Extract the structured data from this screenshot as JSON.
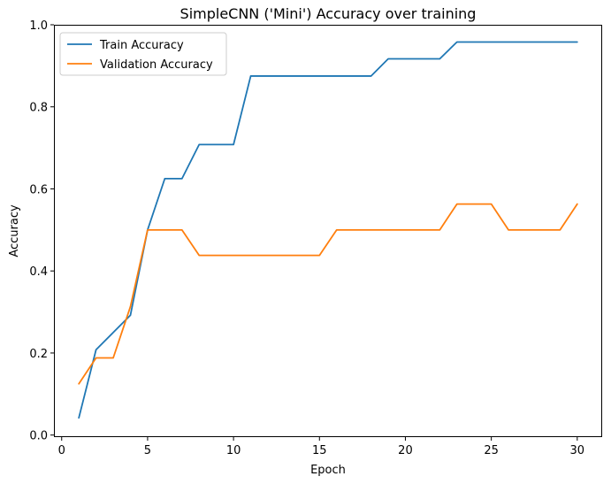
{
  "chart_data": {
    "type": "line",
    "title": "SimpleCNN ('Mini') Accuracy over training",
    "xlabel": "Epoch",
    "ylabel": "Accuracy",
    "xlim": [
      -0.45,
      31.45
    ],
    "ylim": [
      -0.005,
      1.0
    ],
    "xticks": [
      0,
      5,
      10,
      15,
      20,
      25,
      30
    ],
    "xtick_labels": [
      "0",
      "5",
      "10",
      "15",
      "20",
      "25",
      "30"
    ],
    "yticks": [
      0.0,
      0.2,
      0.4,
      0.6,
      0.8,
      1.0
    ],
    "ytick_labels": [
      "0.0",
      "0.2",
      "0.4",
      "0.6",
      "0.8",
      "1.0"
    ],
    "grid": false,
    "legend_position": "top-left",
    "x": [
      1,
      2,
      3,
      4,
      5,
      6,
      7,
      8,
      9,
      10,
      11,
      12,
      13,
      14,
      15,
      16,
      17,
      18,
      19,
      20,
      21,
      22,
      23,
      24,
      25,
      26,
      27,
      28,
      29,
      30
    ],
    "series": [
      {
        "name": "Train Accuracy",
        "color": "#1f77b4",
        "values": [
          0.042,
          0.208,
          0.25,
          0.292,
          0.5,
          0.625,
          0.625,
          0.708,
          0.708,
          0.708,
          0.875,
          0.875,
          0.875,
          0.875,
          0.875,
          0.875,
          0.875,
          0.875,
          0.917,
          0.917,
          0.917,
          0.917,
          0.958,
          0.958,
          0.958,
          0.958,
          0.958,
          0.958,
          0.958,
          0.958
        ]
      },
      {
        "name": "Validation Accuracy",
        "color": "#ff7f0e",
        "values": [
          0.125,
          0.188,
          0.188,
          0.313,
          0.5,
          0.5,
          0.5,
          0.438,
          0.438,
          0.438,
          0.438,
          0.438,
          0.438,
          0.438,
          0.438,
          0.5,
          0.5,
          0.5,
          0.5,
          0.5,
          0.5,
          0.5,
          0.563,
          0.563,
          0.563,
          0.5,
          0.5,
          0.5,
          0.5,
          0.563
        ]
      }
    ]
  }
}
